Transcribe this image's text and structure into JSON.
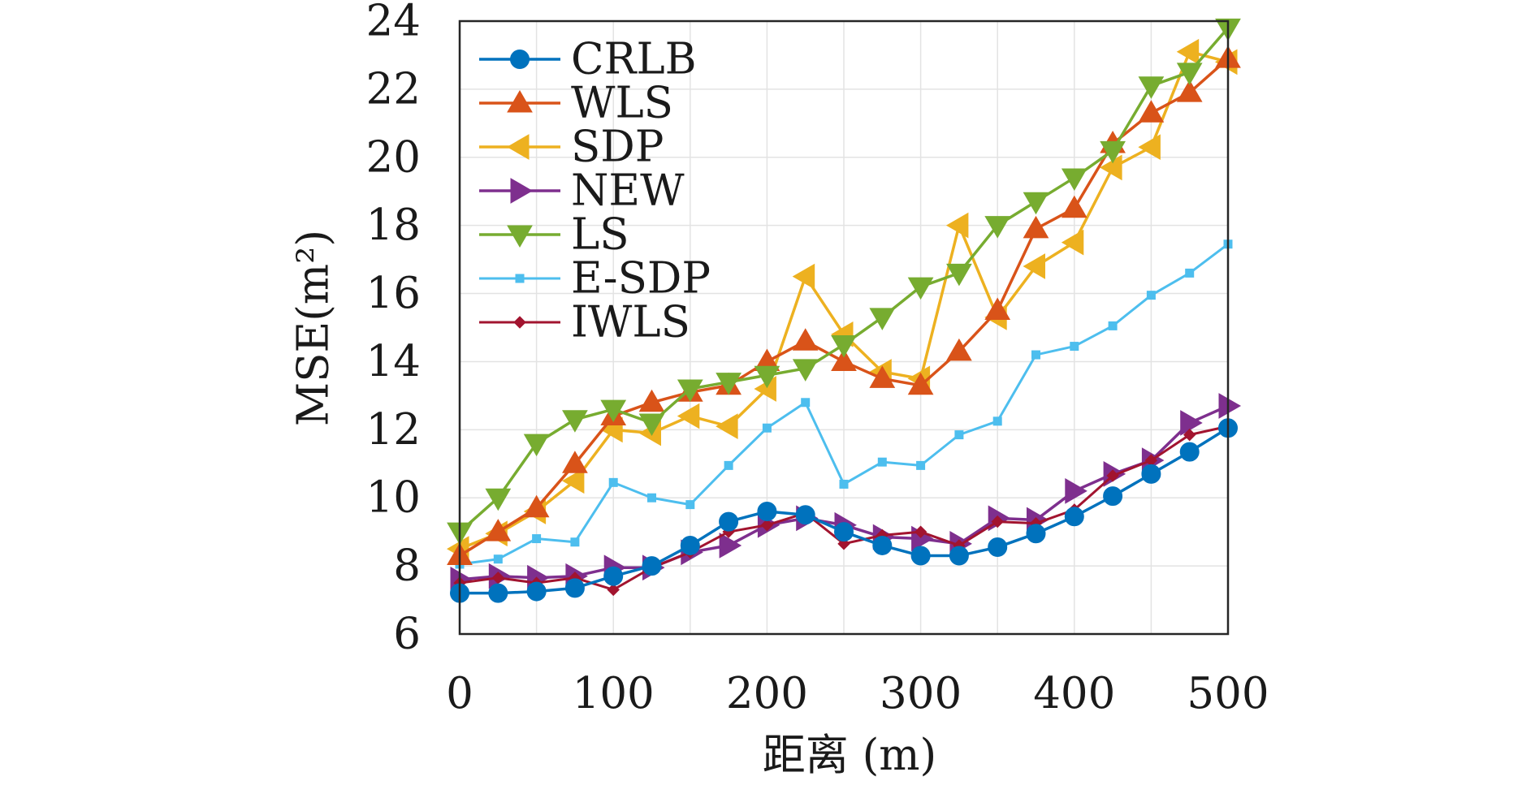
{
  "chart_data": {
    "type": "line",
    "title": "",
    "xlabel": "距离 (m)",
    "ylabel": "MSE(m²)",
    "xlim": [
      0,
      500
    ],
    "ylim": [
      6,
      24
    ],
    "x_ticks": [
      0,
      100,
      200,
      300,
      400,
      500
    ],
    "y_ticks": [
      6,
      8,
      10,
      12,
      14,
      16,
      18,
      20,
      22,
      24
    ],
    "grid": true,
    "legend_position": "top-left",
    "x": [
      0,
      25,
      50,
      75,
      100,
      125,
      150,
      175,
      200,
      225,
      250,
      275,
      300,
      325,
      350,
      375,
      400,
      425,
      450,
      475,
      500
    ],
    "series": [
      {
        "name": "CRLB",
        "color": "#0072BD",
        "marker": "circle",
        "values": [
          7.2,
          7.2,
          7.25,
          7.35,
          7.7,
          8.0,
          8.6,
          9.3,
          9.6,
          9.5,
          9.0,
          8.6,
          8.3,
          8.3,
          8.55,
          8.95,
          9.45,
          10.05,
          10.7,
          11.35,
          12.05
        ]
      },
      {
        "name": "WLS",
        "color": "#D95319",
        "marker": "triangle-up",
        "values": [
          8.3,
          9.0,
          9.7,
          11.0,
          12.4,
          12.8,
          13.1,
          13.3,
          14.0,
          14.6,
          14.0,
          13.5,
          13.3,
          14.3,
          15.5,
          17.9,
          18.5,
          20.4,
          21.3,
          21.9,
          22.9
        ]
      },
      {
        "name": "SDP",
        "color": "#EDB120",
        "marker": "triangle-left",
        "values": [
          8.5,
          8.95,
          9.6,
          10.5,
          12.0,
          11.9,
          12.4,
          12.1,
          13.2,
          16.5,
          14.8,
          13.7,
          13.5,
          18.0,
          15.3,
          16.8,
          17.5,
          19.7,
          20.3,
          23.1,
          22.8
        ]
      },
      {
        "name": "NEW",
        "color": "#7E2F8E",
        "marker": "triangle-right",
        "values": [
          7.6,
          7.7,
          7.65,
          7.7,
          7.95,
          7.95,
          8.4,
          8.6,
          9.2,
          9.4,
          9.2,
          8.85,
          8.8,
          8.65,
          9.4,
          9.35,
          10.2,
          10.7,
          11.1,
          12.2,
          12.7
        ]
      },
      {
        "name": "LS",
        "color": "#77AC30",
        "marker": "triangle-down",
        "values": [
          9.0,
          10.0,
          11.6,
          12.3,
          12.6,
          12.2,
          13.2,
          13.4,
          13.6,
          13.8,
          14.5,
          15.3,
          16.2,
          16.6,
          18.0,
          18.7,
          19.4,
          20.2,
          22.1,
          22.5,
          23.8
        ]
      },
      {
        "name": "E-SDP",
        "color": "#4DBEEE",
        "marker": "square-small",
        "values": [
          8.05,
          8.2,
          8.8,
          8.7,
          10.45,
          10.0,
          9.8,
          10.95,
          12.05,
          12.8,
          10.4,
          11.05,
          10.95,
          11.85,
          12.25,
          14.2,
          14.45,
          15.05,
          15.95,
          16.6,
          17.45
        ]
      },
      {
        "name": "IWLS",
        "color": "#A2142F",
        "marker": "diamond-small",
        "values": [
          7.5,
          7.65,
          7.5,
          7.65,
          7.3,
          7.95,
          8.4,
          9.0,
          9.2,
          9.55,
          8.65,
          8.9,
          9.0,
          8.6,
          9.3,
          9.25,
          9.65,
          10.65,
          11.1,
          11.85,
          12.1
        ]
      }
    ]
  }
}
